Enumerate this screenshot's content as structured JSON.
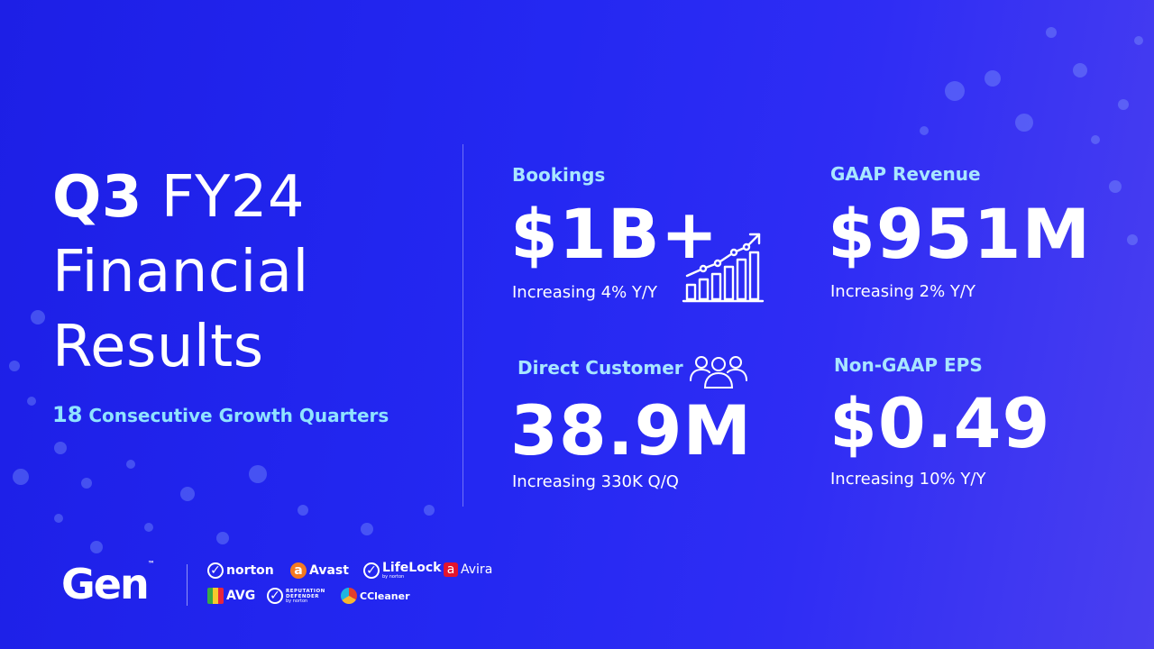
{
  "slide": {
    "title_q": "Q3",
    "title_fy": "FY24",
    "title_line2": "Financial",
    "title_line3": "Results",
    "subtitle_num": "18",
    "subtitle_text": "Consecutive Growth Quarters"
  },
  "metrics": {
    "bookings": {
      "label": "Bookings",
      "value": "$1B+",
      "note": "Increasing 4% Y/Y"
    },
    "revenue": {
      "label": "GAAP Revenue",
      "value": "$951M",
      "note": "Increasing 2% Y/Y"
    },
    "customers": {
      "label": "Direct Customer",
      "value": "38.9M",
      "note": "Increasing 330K Q/Q"
    },
    "eps": {
      "label": "Non-GAAP EPS",
      "value": "$0.49",
      "note": "Increasing 10% Y/Y"
    }
  },
  "footer": {
    "gen_logo": "Gen",
    "gen_tm": "™",
    "brands": {
      "norton": "norton",
      "avast": "Avast",
      "lifelock": "LifeLock",
      "lifelock_sub": "by norton",
      "avira": "Avira",
      "avg": "AVG",
      "reputation_line1": "REPUTATION",
      "reputation_line2": "DEFENDER",
      "reputation_sub": "by norton",
      "ccleaner": "CCleaner"
    }
  },
  "icons": [
    "bar-chart-growth-icon",
    "people-group-icon"
  ],
  "colors": {
    "background": "#2428f2",
    "label": "#a8e6ff",
    "subtitle": "#8fe3ff",
    "text": "#ffffff"
  }
}
